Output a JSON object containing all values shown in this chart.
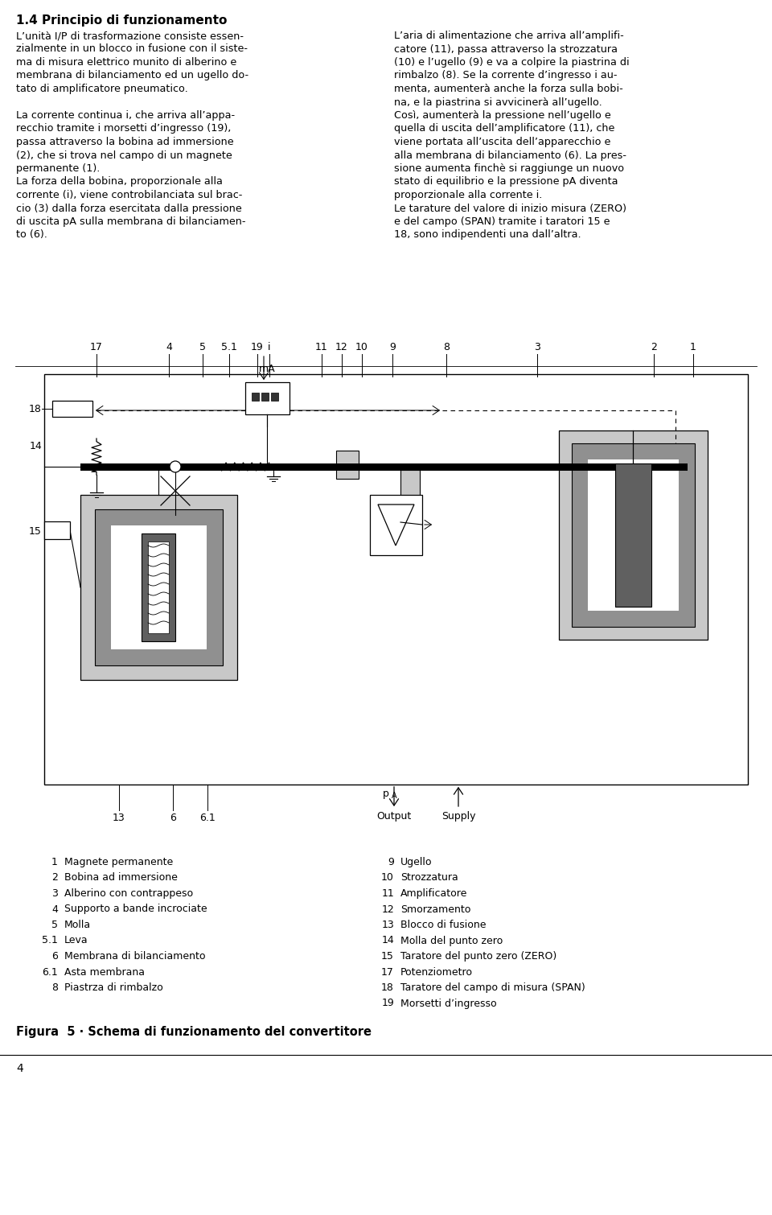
{
  "page_bg": "#ffffff",
  "title_text": "1.4 Principio di funzionamento",
  "left_col_lines": [
    "L’unità I/P di trasformazione consiste essen-",
    "zialmente in un blocco in fusione con il siste-",
    "ma di misura elettrico munito di alberino e",
    "membrana di bilanciamento ed un ugello do-",
    "tato di amplificatore pneumatico.",
    "",
    "La corrente continua i, che arriva all’appa-",
    "recchio tramite i morsetti d’ingresso (19),",
    "passa attraverso la bobina ad immersione",
    "(2), che si trova nel campo di un magnete",
    "permanente (1).",
    "La forza della bobina, proporzionale alla",
    "corrente (i), viene controbilanciata sul brac-",
    "cio (3) dalla forza esercitata dalla pressione",
    "di uscita pA sulla membrana di bilanciamen-",
    "to (6)."
  ],
  "right_col_lines": [
    "L’aria di alimentazione che arriva all’amplifi-",
    "catore (11), passa attraverso la strozzatura",
    "(10) e l’ugello (9) e va a colpire la piastrina di",
    "rimbalzo (8). Se la corrente d’ingresso i au-",
    "menta, aumenterà anche la forza sulla bobi-",
    "na, e la piastrina si avvicinerà all’ugello.",
    "Così, aumenterà la pressione nell’ugello e",
    "quella di uscita dell’amplificatore (11), che",
    "viene portata all’uscita dell’apparecchio e",
    "alla membrana di bilanciamento (6). La pres-",
    "sione aumenta finchè si raggiunge un nuovo",
    "stato di equilibrio e la pressione pA diventa",
    "proporzionale alla corrente i.",
    "Le tarature del valore di inizio misura (ZERO)",
    "e del campo (SPAN) tramite i taratori 15 e",
    "18, sono indipendenti una dall’altra."
  ],
  "legend_left": [
    [
      "1",
      "Magnete permanente"
    ],
    [
      "2",
      "Bobina ad immersione"
    ],
    [
      "3",
      "Alberino con contrappeso"
    ],
    [
      "4",
      "Supporto a bande incrociate"
    ],
    [
      "5",
      "Molla"
    ],
    [
      "5.1",
      "Leva"
    ],
    [
      "6",
      "Membrana di bilanciamento"
    ],
    [
      "6.1",
      "Asta membrana"
    ],
    [
      "8",
      "Piastrza di rimbalzo"
    ]
  ],
  "legend_right": [
    [
      "9",
      "Ugello"
    ],
    [
      "10",
      "Strozzatura"
    ],
    [
      "11",
      "Amplificatore"
    ],
    [
      "12",
      "Smorzamento"
    ],
    [
      "13",
      "Blocco di fusione"
    ],
    [
      "14",
      "Molla del punto zero"
    ],
    [
      "15",
      "Taratore del punto zero (ZERO)"
    ],
    [
      "17",
      "Potenziometro"
    ],
    [
      "18",
      "Taratore del campo di misura (SPAN)"
    ],
    [
      "19",
      "Morsetti d’ingresso"
    ]
  ],
  "figure_caption": "Figura  5 · Schema di funzionamento del convertitore",
  "page_number": "4",
  "gray_light": "#c8c8c8",
  "gray_mid": "#909090",
  "gray_dark": "#606060",
  "black": "#000000",
  "white": "#ffffff"
}
